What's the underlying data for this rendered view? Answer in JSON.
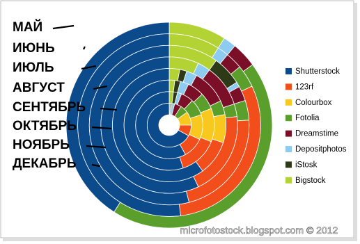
{
  "chart_data": {
    "type": "multi-doughnut",
    "categories": [
      "МАЙ",
      "ИЮНЬ",
      "ИЮЛЬ",
      "АВГУСТ",
      "СЕНТЯБРЬ",
      "ОКТЯБРЬ",
      "НОЯБРЬ",
      "ДЕКАБРЬ"
    ],
    "series": [
      {
        "name": "Shutterstock",
        "color": "#0b4a8b",
        "values": [
          41,
          52,
          54,
          57,
          60,
          55,
          58,
          67
        ]
      },
      {
        "name": "123rf",
        "color": "#f24e1b",
        "values": [
          0,
          30,
          22,
          20,
          10,
          14,
          10,
          8
        ]
      },
      {
        "name": "Colourbox",
        "color": "#f8c81f",
        "values": [
          0,
          0,
          0,
          0,
          8,
          12,
          12,
          10
        ]
      },
      {
        "name": "Fotolia",
        "color": "#5a9f2c",
        "values": [
          44,
          4,
          4,
          3,
          4,
          6,
          8,
          6
        ]
      },
      {
        "name": "Dreamstime",
        "color": "#7b0f27",
        "values": [
          4,
          3,
          3,
          10,
          10,
          6,
          6,
          5
        ]
      },
      {
        "name": "Depositphotos",
        "color": "#8ecbf0",
        "values": [
          2,
          2,
          1,
          3,
          3,
          3,
          2,
          2
        ]
      },
      {
        "name": "iStosk",
        "color": "#2e3a17",
        "values": [
          0,
          0,
          6,
          0,
          2,
          2,
          2,
          1
        ]
      },
      {
        "name": "Bigstock",
        "color": "#b3d234",
        "values": [
          9,
          9,
          10,
          7,
          3,
          2,
          2,
          1
        ]
      }
    ],
    "watermark": "microfotostock.blogspot.com © 2012"
  }
}
